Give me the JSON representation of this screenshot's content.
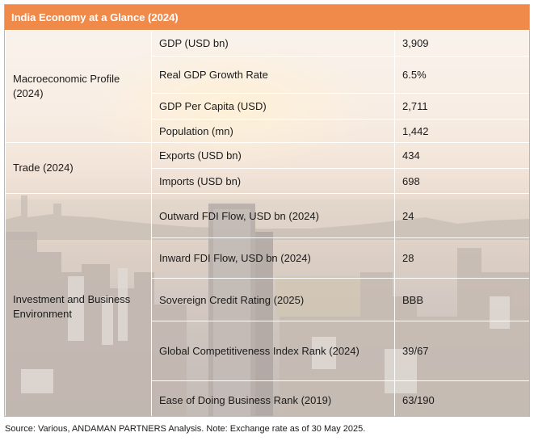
{
  "title": "India Economy at a Glance (2024)",
  "sections": [
    {
      "category": "Macroeconomic Profile (2024)",
      "rows": [
        {
          "indicator": "GDP (USD bn)",
          "value": "3,909"
        },
        {
          "indicator": "Real GDP Growth Rate",
          "value": "6.5%"
        },
        {
          "indicator": "GDP Per Capita (USD)",
          "value": "2,711"
        },
        {
          "indicator": "Population (mn)",
          "value": "1,442"
        }
      ]
    },
    {
      "category": "Trade (2024)",
      "rows": [
        {
          "indicator": "Exports (USD bn)",
          "value": "434"
        },
        {
          "indicator": "Imports (USD bn)",
          "value": "698"
        }
      ]
    },
    {
      "category": "Investment and Business Environment",
      "rows": [
        {
          "indicator": "Outward FDI Flow, USD bn (2024)",
          "value": "24"
        },
        {
          "indicator": "Inward FDI Flow, USD bn (2024)",
          "value": "28"
        },
        {
          "indicator": "Sovereign Credit Rating (2025)",
          "value": "BBB"
        },
        {
          "indicator": "Global Competitiveness Index Rank (2024)",
          "value": "39/67"
        },
        {
          "indicator": "Ease of Doing Business Rank (2019)",
          "value": "63/190"
        }
      ]
    }
  ],
  "source_note": "Source: Various, ANDAMAN PARTNERS Analysis. Note: Exchange rate as of 30 May 2025."
}
